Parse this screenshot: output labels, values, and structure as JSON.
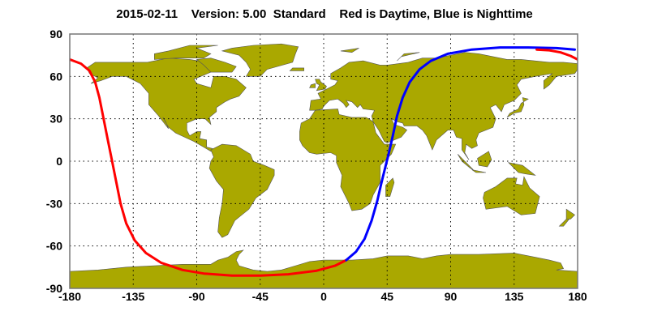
{
  "title": "2015-02-11    Version: 5.00  Standard    Red is Daytime, Blue is Nighttime",
  "map": {
    "projection": "equirectangular",
    "land_color": "#aaa800",
    "grid": true,
    "lon_range": [
      -180,
      180
    ],
    "lat_range": [
      -90,
      90
    ],
    "lon_ticks": [
      "-180",
      "-135",
      "-90",
      "-45",
      "0",
      "45",
      "90",
      "135",
      "180"
    ],
    "lat_ticks": [
      "90",
      "60",
      "30",
      "0",
      "-30",
      "-60",
      "-90"
    ]
  },
  "tracks": [
    {
      "label": "Daytime",
      "color": "#ff0000",
      "points": [
        [
          -180,
          72
        ],
        [
          -172,
          69
        ],
        [
          -166,
          64
        ],
        [
          -162,
          56
        ],
        [
          -159,
          45
        ],
        [
          -156,
          30
        ],
        [
          -153,
          15
        ],
        [
          -150,
          0
        ],
        [
          -147,
          -15
        ],
        [
          -144,
          -30
        ],
        [
          -140,
          -44
        ],
        [
          -134,
          -56
        ],
        [
          -126,
          -65
        ],
        [
          -115,
          -72
        ],
        [
          -100,
          -77
        ],
        [
          -85,
          -79.5
        ],
        [
          -65,
          -81
        ],
        [
          -45,
          -81
        ],
        [
          -25,
          -80
        ],
        [
          -5,
          -77.5
        ],
        [
          8,
          -74
        ],
        [
          16,
          -70
        ]
      ]
    },
    {
      "label": "Nighttime",
      "color": "#0000ff",
      "points": [
        [
          16,
          -70
        ],
        [
          23,
          -64
        ],
        [
          29,
          -55
        ],
        [
          34,
          -42
        ],
        [
          38,
          -28
        ],
        [
          41,
          -15
        ],
        [
          44,
          -3
        ],
        [
          46,
          5
        ],
        [
          49,
          18
        ],
        [
          52,
          32
        ],
        [
          56,
          45
        ],
        [
          61,
          56
        ],
        [
          68,
          65
        ],
        [
          76,
          71
        ],
        [
          88,
          76
        ],
        [
          105,
          79
        ],
        [
          125,
          80.5
        ],
        [
          145,
          80.5
        ],
        [
          165,
          80
        ],
        [
          178,
          79
        ]
      ]
    },
    {
      "label": "Daytime",
      "color": "#ff0000",
      "points": [
        [
          151,
          79
        ],
        [
          160,
          78.5
        ],
        [
          168,
          77
        ],
        [
          175,
          74.5
        ],
        [
          180,
          72
        ]
      ]
    }
  ]
}
